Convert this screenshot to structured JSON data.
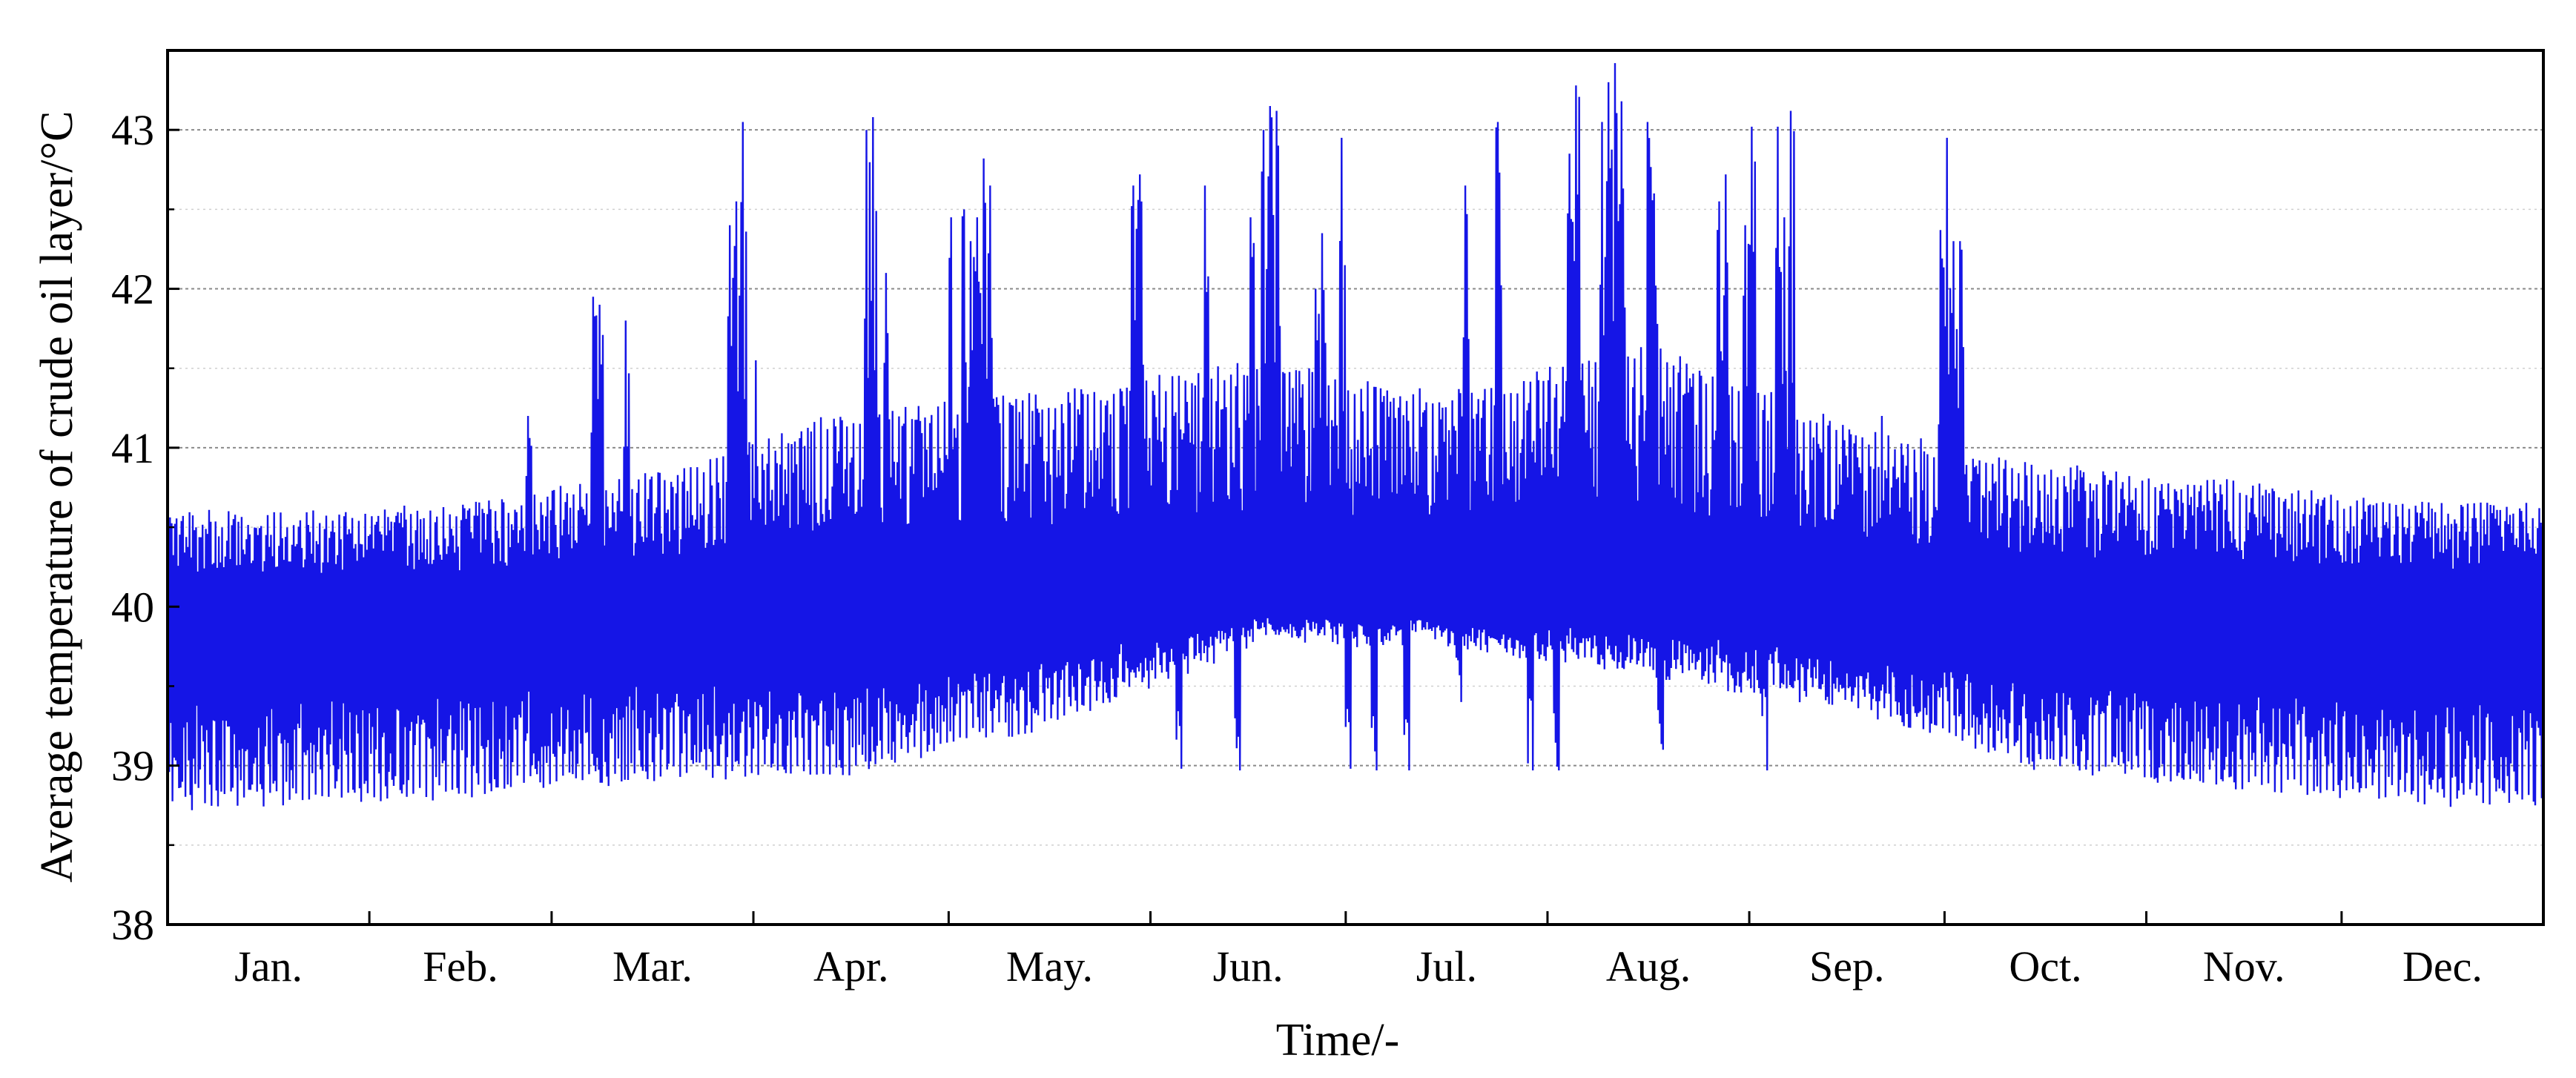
{
  "chart_data": {
    "type": "line",
    "xlabel": "Time/-",
    "ylabel": "Average temperature of crude oil layer/°C",
    "ylim": [
      38,
      43.5
    ],
    "yticks": [
      38,
      39,
      40,
      41,
      42,
      43
    ],
    "ytick_labels": [
      "38",
      "39",
      "40",
      "41",
      "42",
      "43"
    ],
    "x_categories": [
      "Jan.",
      "Feb.",
      "Mar.",
      "Apr.",
      "May.",
      "Jun.",
      "Jul.",
      "Aug.",
      "Sep.",
      "Oct.",
      "Nov.",
      "Dec."
    ],
    "grid": true,
    "series": [
      {
        "color": "#1515e6",
        "sampling": "daily envelope (min / max of the 24 hourly values), Jan 1 – Dec 31",
        "month_days": [
          31,
          28,
          31,
          30,
          31,
          30,
          31,
          31,
          30,
          31,
          30,
          31
        ],
        "daily_max": {
          "Jan": 40.55,
          "Feb": 40.6,
          "Mar": 40.8,
          "Apr": 41.2,
          "May": 41.3,
          "Jun": 41.5,
          "Jul": 41.3,
          "Aug": 41.6,
          "Sep": 41.1,
          "Oct": 40.85,
          "Nov": 40.75,
          "Dec": 40.6
        },
        "daily_min": {
          "Jan": 38.8,
          "Feb": 38.85,
          "Mar": 38.95,
          "Apr": 39.0,
          "May": 39.3,
          "Jun": 39.8,
          "Jul": 39.8,
          "Aug": 39.6,
          "Sep": 39.4,
          "Oct": 39.0,
          "Nov": 38.9,
          "Dec": 38.8
        },
        "peaks": [
          {
            "date": "Feb 25",
            "value": 41.2
          },
          {
            "date": "Mar 7",
            "value": 41.95
          },
          {
            "date": "Mar 8",
            "value": 41.9
          },
          {
            "date": "Mar 12",
            "value": 41.8
          },
          {
            "date": "Mar 28",
            "value": 42.4
          },
          {
            "date": "Mar 29",
            "value": 42.55
          },
          {
            "date": "Mar 30",
            "value": 43.05
          },
          {
            "date": "Apr 1",
            "value": 41.55
          },
          {
            "date": "Apr 18",
            "value": 43.0
          },
          {
            "date": "Apr 19",
            "value": 43.08
          },
          {
            "date": "Apr 21",
            "value": 42.1
          },
          {
            "date": "May 1",
            "value": 42.45
          },
          {
            "date": "May 3",
            "value": 42.5
          },
          {
            "date": "May 4",
            "value": 42.3
          },
          {
            "date": "May 5",
            "value": 42.45
          },
          {
            "date": "May 6",
            "value": 42.82
          },
          {
            "date": "May 7",
            "value": 42.65
          },
          {
            "date": "May 29",
            "value": 42.65
          },
          {
            "date": "May 30",
            "value": 42.72
          },
          {
            "date": "Jun 9",
            "value": 42.65
          },
          {
            "date": "Jun 16",
            "value": 42.45
          },
          {
            "date": "Jun 18",
            "value": 43.0
          },
          {
            "date": "Jun 19",
            "value": 43.15
          },
          {
            "date": "Jun 20",
            "value": 43.12
          },
          {
            "date": "Jun 26",
            "value": 42.0
          },
          {
            "date": "Jun 27",
            "value": 42.35
          },
          {
            "date": "Jun 30",
            "value": 42.95
          },
          {
            "date": "Jul 19",
            "value": 42.65
          },
          {
            "date": "Jul 24",
            "value": 43.05
          },
          {
            "date": "Aug 4",
            "value": 42.85
          },
          {
            "date": "Aug 5",
            "value": 43.28
          },
          {
            "date": "Aug 9",
            "value": 43.05
          },
          {
            "date": "Aug 10",
            "value": 43.3
          },
          {
            "date": "Aug 11",
            "value": 43.42
          },
          {
            "date": "Aug 12",
            "value": 43.18
          },
          {
            "date": "Aug 16",
            "value": 43.05
          },
          {
            "date": "Aug 17",
            "value": 42.6
          },
          {
            "date": "Aug 27",
            "value": 42.55
          },
          {
            "date": "Aug 28",
            "value": 42.72
          },
          {
            "date": "Aug 31",
            "value": 42.4
          },
          {
            "date": "Sep 1",
            "value": 43.02
          },
          {
            "date": "Sep 5",
            "value": 43.02
          },
          {
            "date": "Sep 7",
            "value": 43.12
          },
          {
            "date": "Sep 6",
            "value": 42.45
          },
          {
            "date": "Sep 21",
            "value": 41.2
          },
          {
            "date": "Sep 30",
            "value": 42.37
          },
          {
            "date": "Oct 1",
            "value": 42.95
          },
          {
            "date": "Oct 2",
            "value": 42.3
          },
          {
            "date": "Oct 3",
            "value": 42.3
          }
        ],
        "dips": [
          {
            "date": "Jan 4",
            "value": 38.72
          },
          {
            "date": "Jan 18",
            "value": 38.75
          },
          {
            "date": "Jun 5",
            "value": 38.98
          },
          {
            "date": "Jun 14",
            "value": 38.97
          },
          {
            "date": "Jul 1",
            "value": 38.98
          },
          {
            "date": "Jul 5",
            "value": 38.97
          },
          {
            "date": "Jul 10",
            "value": 38.97
          },
          {
            "date": "Jul 18",
            "value": 39.4
          },
          {
            "date": "Jul 29",
            "value": 38.97
          },
          {
            "date": "Aug 2",
            "value": 38.97
          },
          {
            "date": "Aug 18",
            "value": 39.1
          },
          {
            "date": "Sep 3",
            "value": 38.97
          },
          {
            "date": "Dec 30",
            "value": 38.75
          }
        ]
      }
    ]
  }
}
